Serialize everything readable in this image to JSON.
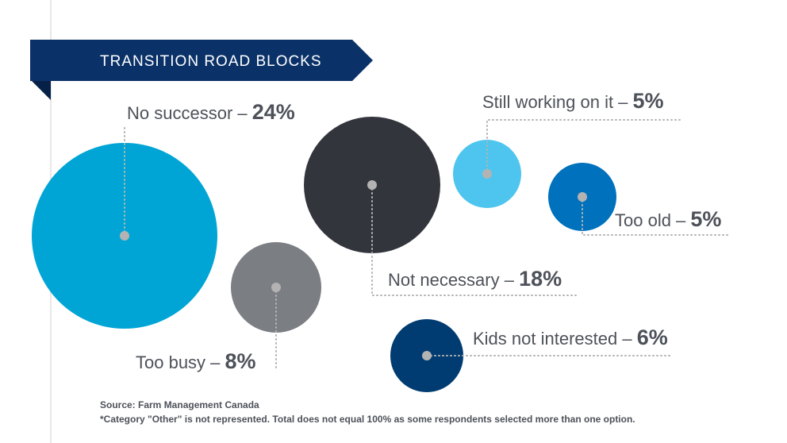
{
  "chart_data": {
    "type": "bubble",
    "title": "TRANSITION ROAD BLOCKS",
    "unit": "%",
    "items": [
      {
        "name": "No successor",
        "label": "No successor – ",
        "value_label": "24%",
        "value": 24,
        "color": "#00a5d6"
      },
      {
        "name": "Too busy",
        "label": "Too busy – ",
        "value_label": "8%",
        "value": 8,
        "color": "#7b7e83"
      },
      {
        "name": "Not necessary",
        "label": "Not necessary – ",
        "value_label": "18%",
        "value": 18,
        "color": "#33353d"
      },
      {
        "name": "Still working on it",
        "label": "Still working on it – ",
        "value_label": "5%",
        "value": 5,
        "color": "#4ec5ee"
      },
      {
        "name": "Too old",
        "label": "Too old – ",
        "value_label": "5%",
        "value": 5,
        "color": "#0071bc"
      },
      {
        "name": "Kids not interested",
        "label": "Kids not interested – ",
        "value_label": "6%",
        "value": 6,
        "color": "#003c71"
      }
    ],
    "source": "Source: Farm Management Canada",
    "footnote": "*Category \"Other\" is not represented. Total does not equal 100% as some respondents selected more than one option."
  },
  "colors": {
    "banner": "#0b3268",
    "banner_fold": "#062147",
    "text": "#4d5159",
    "dots": "#b3b3b3",
    "rule": "#d0d0d0"
  }
}
